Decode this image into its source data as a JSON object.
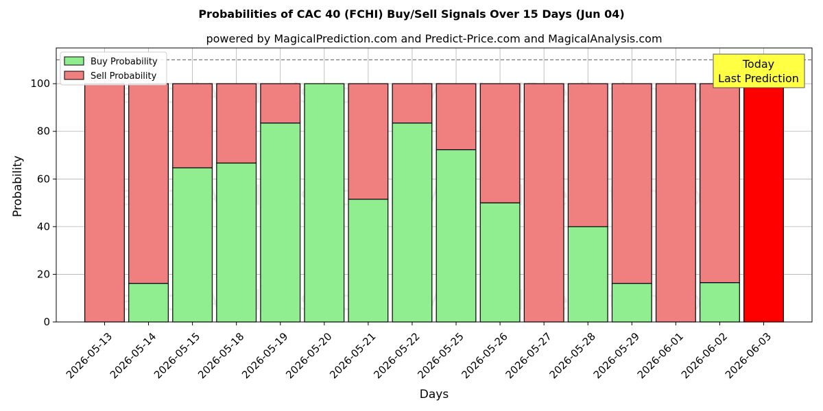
{
  "chart_data": {
    "type": "bar",
    "stacked": true,
    "title": "Probabilities of CAC 40 (FCHI) Buy/Sell Signals Over 15 Days (Jun 04)",
    "subtitle": "powered by MagicalPrediction.com and Predict-Price.com and MagicalAnalysis.com",
    "xlabel": "Days",
    "ylabel": "Probability",
    "ylim": [
      0,
      115
    ],
    "yticks": [
      0,
      20,
      40,
      60,
      80,
      100
    ],
    "grid": true,
    "legend_placement": "top-left",
    "reference_line": 110,
    "categories": [
      "2026-05-13",
      "2026-05-14",
      "2026-05-15",
      "2026-05-18",
      "2026-05-19",
      "2026-05-20",
      "2026-05-21",
      "2026-05-22",
      "2026-05-25",
      "2026-05-26",
      "2026-05-27",
      "2026-05-28",
      "2026-05-29",
      "2026-06-01",
      "2026-06-02",
      "2026-06-03"
    ],
    "series": [
      {
        "name": "Buy Probability",
        "color": "#90ee90",
        "values": [
          0,
          16.2,
          64.7,
          66.7,
          83.5,
          100,
          51.5,
          83.5,
          72.3,
          50,
          0,
          40,
          16.2,
          0,
          16.5,
          0
        ]
      },
      {
        "name": "Sell Probability",
        "color": "#f08080",
        "values": [
          100,
          83.8,
          35.3,
          33.3,
          16.5,
          0,
          48.5,
          16.5,
          27.7,
          50,
          100,
          60,
          83.8,
          100,
          83.5,
          100
        ]
      }
    ],
    "highlight": {
      "category": "2026-06-03",
      "color": "#ff0000"
    },
    "annotation": {
      "line1": "Today",
      "line2": "Last Prediction",
      "background": "#ffff44"
    },
    "watermarks": [
      "MagicalAnalysis.com",
      "MagicalPrediction.com"
    ]
  }
}
